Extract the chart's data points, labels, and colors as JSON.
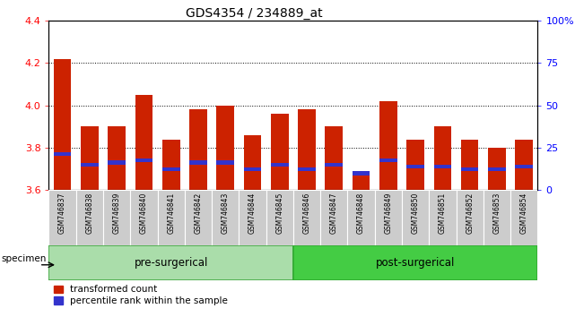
{
  "title": "GDS4354 / 234889_at",
  "samples": [
    "GSM746837",
    "GSM746838",
    "GSM746839",
    "GSM746840",
    "GSM746841",
    "GSM746842",
    "GSM746843",
    "GSM746844",
    "GSM746845",
    "GSM746846",
    "GSM746847",
    "GSM746848",
    "GSM746849",
    "GSM746850",
    "GSM746851",
    "GSM746852",
    "GSM746853",
    "GSM746854"
  ],
  "bar_values": [
    4.22,
    3.9,
    3.9,
    4.05,
    3.84,
    3.98,
    4.0,
    3.86,
    3.96,
    3.98,
    3.9,
    3.69,
    4.02,
    3.84,
    3.9,
    3.84,
    3.8,
    3.84
  ],
  "blue_marker_values": [
    3.77,
    3.72,
    3.73,
    3.74,
    3.7,
    3.73,
    3.73,
    3.7,
    3.72,
    3.7,
    3.72,
    3.68,
    3.74,
    3.71,
    3.71,
    3.7,
    3.7,
    3.71
  ],
  "ymin": 3.6,
  "ymax": 4.4,
  "bar_color": "#cc2200",
  "blue_color": "#3333cc",
  "pre_surgical_count": 9,
  "pre_label": "pre-surgerical",
  "post_label": "post-surgerical",
  "pre_color": "#bbeeaa",
  "post_color": "#44bb44",
  "specimen_label": "specimen",
  "legend_red": "transformed count",
  "legend_blue": "percentile rank within the sample",
  "title_fontsize": 10,
  "bar_width": 0.65
}
